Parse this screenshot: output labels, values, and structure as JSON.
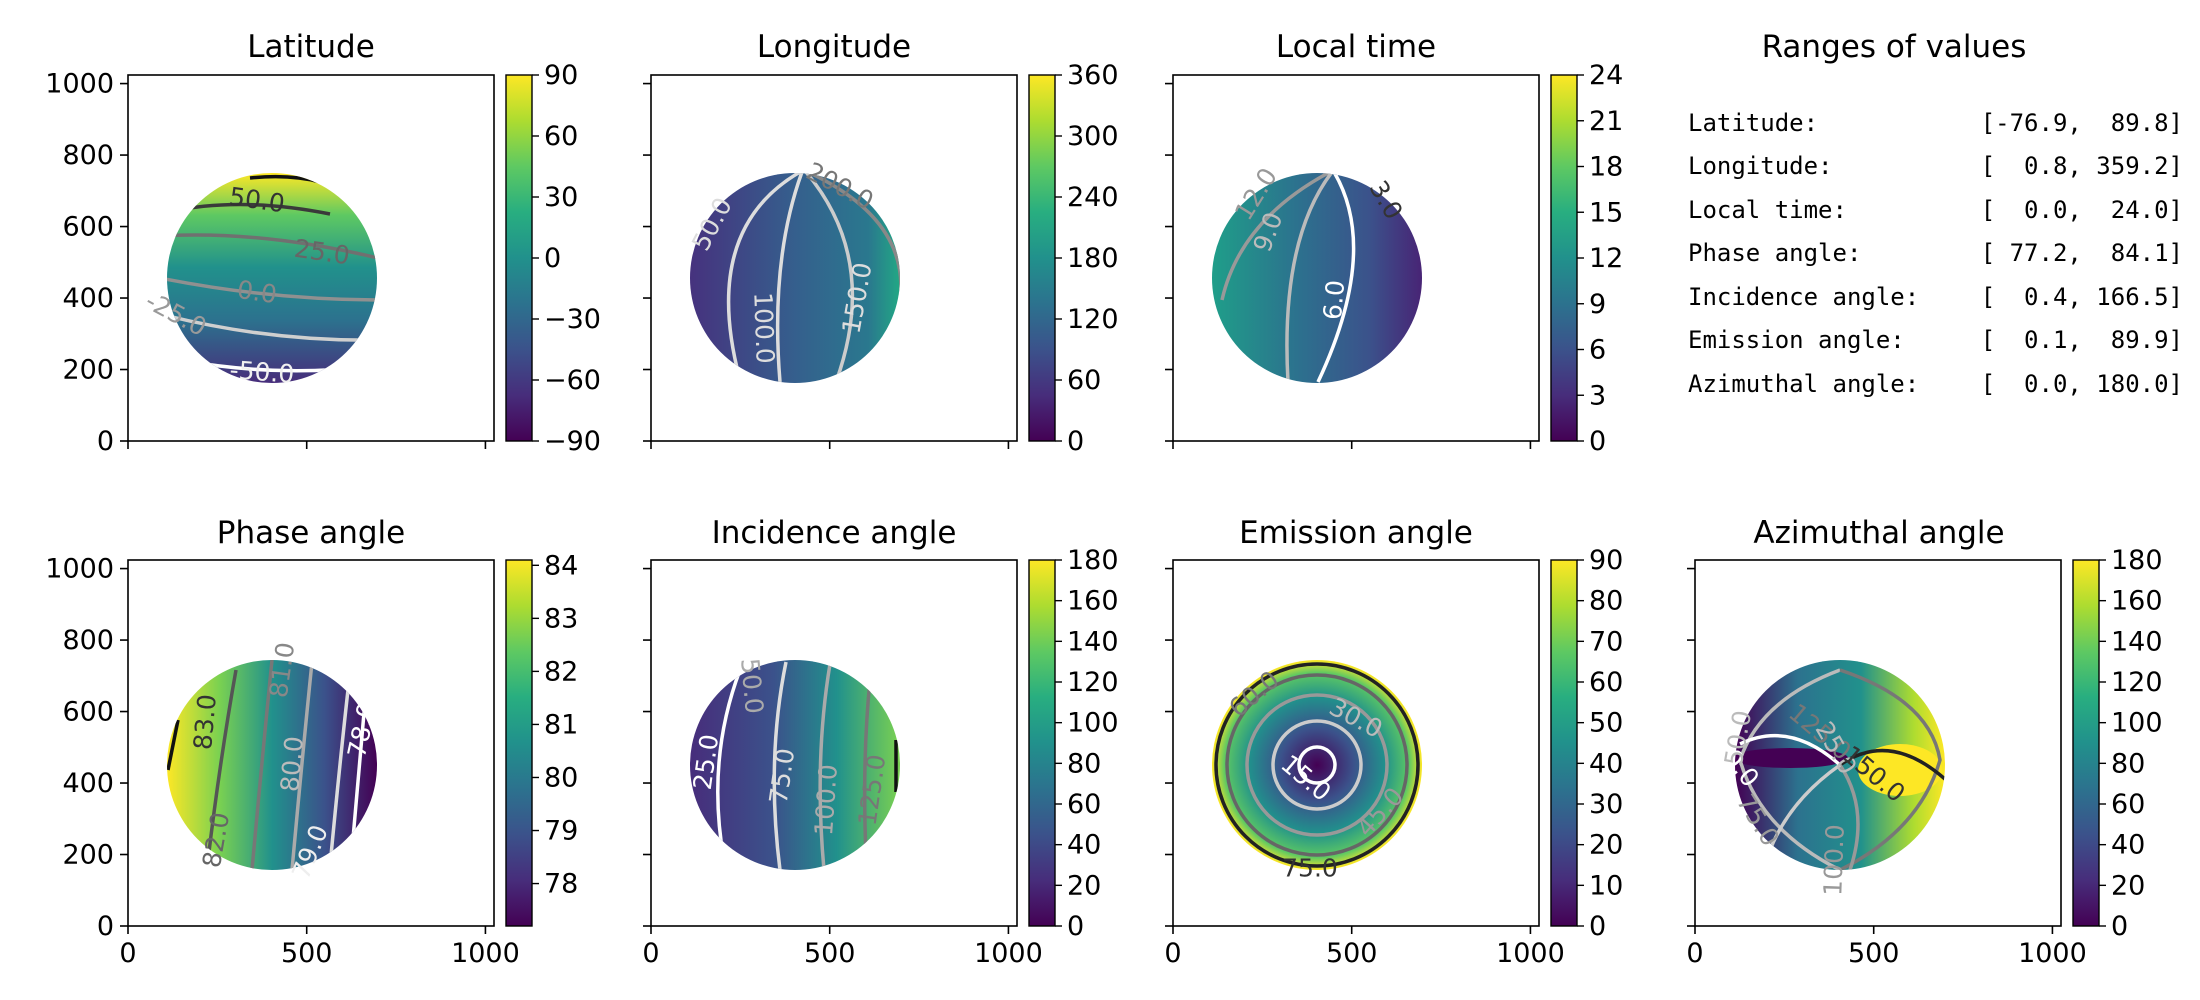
{
  "chart_data": [
    {
      "type": "heatmap",
      "title": "Latitude",
      "colorbar_ticks": [
        "90",
        "60",
        "30",
        "0",
        "−30",
        "−60",
        "−90"
      ],
      "clim": [
        -90,
        90
      ],
      "contour_labels": [
        {
          "text": "50.0",
          "x": 257,
          "y": 200,
          "rot": 8,
          "color": "#333333"
        },
        {
          "text": "25.0",
          "x": 322,
          "y": 252,
          "rot": 8,
          "color": "#666666"
        },
        {
          "text": "0.0",
          "x": 257,
          "y": 292,
          "rot": 8,
          "color": "#888888"
        },
        {
          "text": "-25.0",
          "x": 176,
          "y": 314,
          "rot": 28,
          "color": "#9a9a9a"
        },
        {
          "text": "-50.0",
          "x": 262,
          "y": 372,
          "rot": 4,
          "color": "#f0f0f0"
        }
      ]
    },
    {
      "type": "heatmap",
      "title": "Longitude",
      "colorbar_ticks": [
        "360",
        "300",
        "240",
        "180",
        "120",
        "60",
        "0"
      ],
      "clim": [
        0,
        360
      ],
      "contour_labels": [
        {
          "text": "200.0",
          "x": 840,
          "y": 186,
          "rot": 28,
          "color": "#777777"
        },
        {
          "text": "50.0",
          "x": 712,
          "y": 224,
          "rot": -62,
          "color": "#dddddd"
        },
        {
          "text": "150.0",
          "x": 857,
          "y": 298,
          "rot": -80,
          "color": "#dddddd"
        },
        {
          "text": "100.0",
          "x": 764,
          "y": 328,
          "rot": 88,
          "color": "#dddddd"
        }
      ]
    },
    {
      "type": "heatmap",
      "title": "Local time",
      "colorbar_ticks": [
        "24",
        "21",
        "18",
        "15",
        "12",
        "9",
        "6",
        "3",
        "0"
      ],
      "clim": [
        0,
        24
      ],
      "contour_labels": [
        {
          "text": "12.0",
          "x": 1256,
          "y": 194,
          "rot": -58,
          "color": "#999999"
        },
        {
          "text": "3.0",
          "x": 1386,
          "y": 200,
          "rot": 60,
          "color": "#333333"
        },
        {
          "text": "9.0",
          "x": 1268,
          "y": 232,
          "rot": -70,
          "color": "#bbbbbb"
        },
        {
          "text": "6.0",
          "x": 1334,
          "y": 300,
          "rot": -85,
          "color": "#ffffff"
        }
      ]
    },
    {
      "type": "table",
      "title": "Ranges of values",
      "rows": [
        {
          "label": "Latitude:",
          "range": "[-76.9,  89.8]"
        },
        {
          "label": "Longitude:",
          "range": "[  0.8, 359.2]"
        },
        {
          "label": "Local time:",
          "range": "[  0.0,  24.0]"
        },
        {
          "label": "Phase angle:",
          "range": "[ 77.2,  84.1]"
        },
        {
          "label": "Incidence angle:",
          "range": "[  0.4, 166.5]"
        },
        {
          "label": "Emission angle:",
          "range": "[  0.1,  89.9]"
        },
        {
          "label": "Azimuthal angle:",
          "range": "[  0.0, 180.0]"
        }
      ]
    },
    {
      "type": "heatmap",
      "title": "Phase angle",
      "colorbar_ticks": [
        "84",
        "83",
        "82",
        "81",
        "80",
        "79",
        "78"
      ],
      "clim": [
        77.2,
        84.1
      ],
      "contour_labels": [
        {
          "text": "81.0",
          "x": 282,
          "y": 670,
          "rot": -82,
          "color": "#888888"
        },
        {
          "text": "78.0",
          "x": 362,
          "y": 730,
          "rot": -78,
          "color": "#ffffff"
        },
        {
          "text": "83.0",
          "x": 205,
          "y": 722,
          "rot": -85,
          "color": "#333333"
        },
        {
          "text": "80.0",
          "x": 292,
          "y": 764,
          "rot": -85,
          "color": "#bbbbbb"
        },
        {
          "text": "82.0",
          "x": 216,
          "y": 840,
          "rot": -80,
          "color": "#666666"
        },
        {
          "text": "79.0",
          "x": 310,
          "y": 852,
          "rot": -68,
          "color": "#eeeeee"
        }
      ]
    },
    {
      "type": "heatmap",
      "title": "Incidence angle",
      "colorbar_ticks": [
        "180",
        "160",
        "140",
        "120",
        "100",
        "80",
        "60",
        "40",
        "20",
        "0"
      ],
      "clim": [
        0,
        180
      ],
      "contour_labels": [
        {
          "text": "50.0",
          "x": 752,
          "y": 686,
          "rot": 85,
          "color": "#aaaaaa"
        },
        {
          "text": "25.0",
          "x": 706,
          "y": 762,
          "rot": -82,
          "color": "#ffffff"
        },
        {
          "text": "75.0",
          "x": 782,
          "y": 776,
          "rot": -82,
          "color": "#dddddd"
        },
        {
          "text": "125.0",
          "x": 872,
          "y": 790,
          "rot": -82,
          "color": "#777777"
        },
        {
          "text": "100.0",
          "x": 826,
          "y": 800,
          "rot": -86,
          "color": "#aaaaaa"
        }
      ]
    },
    {
      "type": "heatmap",
      "title": "Emission angle",
      "colorbar_ticks": [
        "90",
        "80",
        "70",
        "60",
        "50",
        "40",
        "30",
        "20",
        "10",
        "0"
      ],
      "clim": [
        0,
        90
      ],
      "contour_labels": [
        {
          "text": "60.0",
          "x": 1254,
          "y": 694,
          "rot": -40,
          "color": "#777777"
        },
        {
          "text": "30.0",
          "x": 1356,
          "y": 718,
          "rot": 28,
          "color": "#bbbbbb"
        },
        {
          "text": "15.0",
          "x": 1306,
          "y": 778,
          "rot": 40,
          "color": "#ffffff"
        },
        {
          "text": "45.0",
          "x": 1380,
          "y": 812,
          "rot": -48,
          "color": "#999999"
        },
        {
          "text": "75.0",
          "x": 1310,
          "y": 868,
          "rot": 0,
          "color": "#333333"
        }
      ]
    },
    {
      "type": "heatmap",
      "title": "Azimuthal angle",
      "colorbar_ticks": [
        "180",
        "160",
        "140",
        "120",
        "100",
        "80",
        "60",
        "40",
        "20",
        "0"
      ],
      "clim": [
        0,
        180
      ],
      "contour_labels": [
        {
          "text": "125.0",
          "x": 1820,
          "y": 732,
          "rot": 40,
          "color": "#777777"
        },
        {
          "text": "50.0",
          "x": 1736,
          "y": 762,
          "rot": 50,
          "color": "#ffffff"
        },
        {
          "text": "25.0",
          "x": 1836,
          "y": 748,
          "rot": 60,
          "color": "#bbbbbb"
        },
        {
          "text": "150.0",
          "x": 1874,
          "y": 774,
          "rot": 40,
          "color": "#333333"
        },
        {
          "text": "50.0",
          "x": 1738,
          "y": 738,
          "rot": -80,
          "color": "#bbbbbb"
        },
        {
          "text": "75.0",
          "x": 1758,
          "y": 820,
          "rot": 58,
          "color": "#999999"
        },
        {
          "text": "100.0",
          "x": 1834,
          "y": 860,
          "rot": -88,
          "color": "#999999"
        }
      ]
    }
  ],
  "axes": {
    "x_ticks": [
      0,
      500,
      1000
    ],
    "y_ticks": [
      0,
      200,
      400,
      600,
      800,
      1000
    ],
    "xlim": [
      0,
      1024
    ],
    "ylim": [
      0,
      1024
    ]
  },
  "disk": {
    "center_x": 400,
    "center_y": 450,
    "radius": 295
  }
}
